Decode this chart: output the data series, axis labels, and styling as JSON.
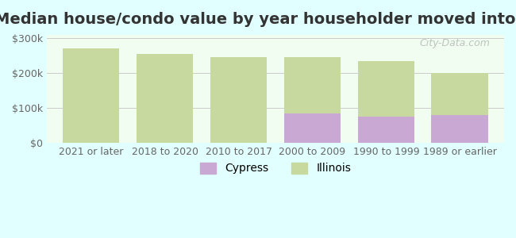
{
  "title": "Median house/condo value by year householder moved into unit",
  "categories": [
    "2021 or later",
    "2018 to 2020",
    "2010 to 2017",
    "2000 to 2009",
    "1990 to 1999",
    "1989 or earlier"
  ],
  "cypress_values": [
    null,
    null,
    null,
    85000,
    75000,
    80000
  ],
  "illinois_values": [
    270000,
    255000,
    245000,
    245000,
    235000,
    200000
  ],
  "cypress_color": "#c9a8d4",
  "illinois_color": "#c8d9a0",
  "background_color": "#e0fffe",
  "plot_bg_color": "#f0fdf0",
  "ylim": [
    0,
    310000
  ],
  "yticks": [
    0,
    100000,
    200000,
    300000
  ],
  "ytick_labels": [
    "$0",
    "$100k",
    "$200k",
    "$300k"
  ],
  "legend_labels": [
    "Cypress",
    "Illinois"
  ],
  "watermark": "City-Data.com",
  "bar_width": 0.35,
  "title_fontsize": 14,
  "tick_fontsize": 9,
  "legend_fontsize": 10
}
